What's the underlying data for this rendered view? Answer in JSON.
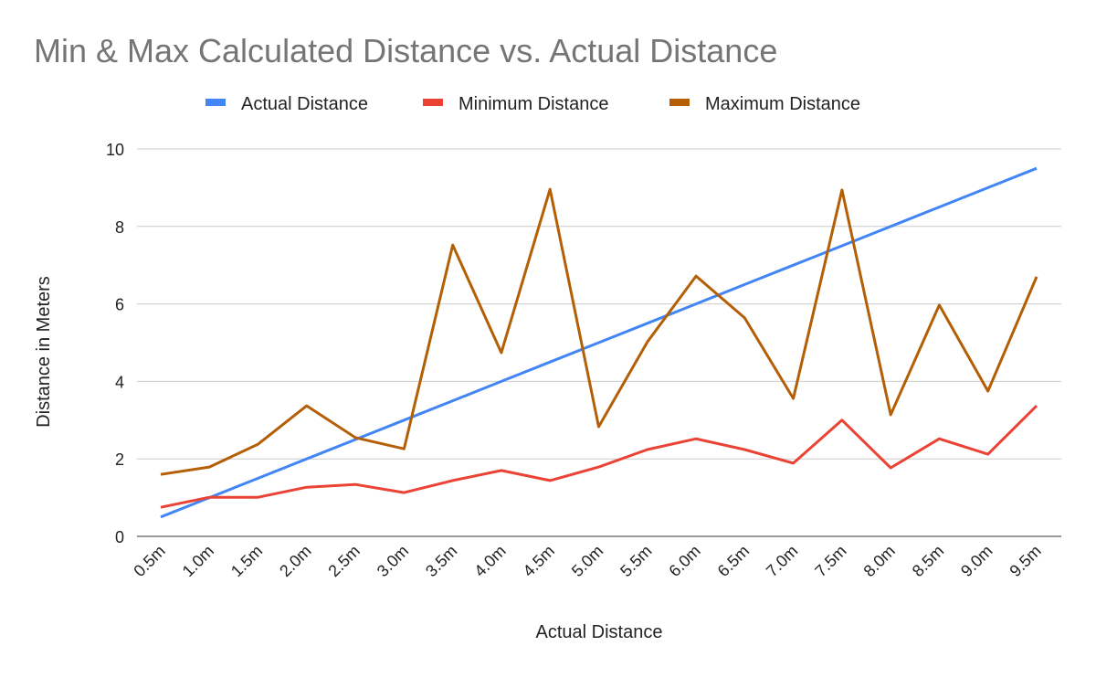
{
  "chart_data": {
    "type": "line",
    "title": "Min & Max Calculated Distance vs. Actual Distance",
    "xlabel": "Actual Distance",
    "ylabel": "Distance in Meters",
    "ylim": [
      0,
      10
    ],
    "yticks": [
      0,
      2,
      4,
      6,
      8,
      10
    ],
    "grid": true,
    "legend_position": "top",
    "categories": [
      "0.5m",
      "1.0m",
      "1.5m",
      "2.0m",
      "2.5m",
      "3.0m",
      "3.5m",
      "4.0m",
      "4.5m",
      "5.0m",
      "5.5m",
      "6.0m",
      "6.5m",
      "7.0m",
      "7.5m",
      "8.0m",
      "8.5m",
      "9.0m",
      "9.5m"
    ],
    "series": [
      {
        "name": "Actual Distance",
        "color": "#4285f4",
        "values": [
          0.5,
          1.0,
          1.5,
          2.0,
          2.5,
          3.0,
          3.5,
          4.0,
          4.5,
          5.0,
          5.5,
          6.0,
          6.5,
          7.0,
          7.5,
          8.0,
          8.5,
          9.0,
          9.5
        ]
      },
      {
        "name": "Minimum Distance",
        "color": "#ea4335",
        "values": [
          0.75,
          1.01,
          1.01,
          1.27,
          1.34,
          1.13,
          1.44,
          1.7,
          1.44,
          1.79,
          2.24,
          2.52,
          2.24,
          1.89,
          3.0,
          1.77,
          2.52,
          2.12,
          3.37
        ]
      },
      {
        "name": "Maximum Distance",
        "color": "#b45f06",
        "values": [
          1.6,
          1.79,
          2.38,
          3.37,
          2.55,
          2.26,
          7.52,
          4.74,
          8.96,
          2.83,
          5.02,
          6.72,
          5.64,
          3.56,
          8.94,
          3.14,
          5.97,
          3.75,
          6.7
        ]
      }
    ]
  }
}
